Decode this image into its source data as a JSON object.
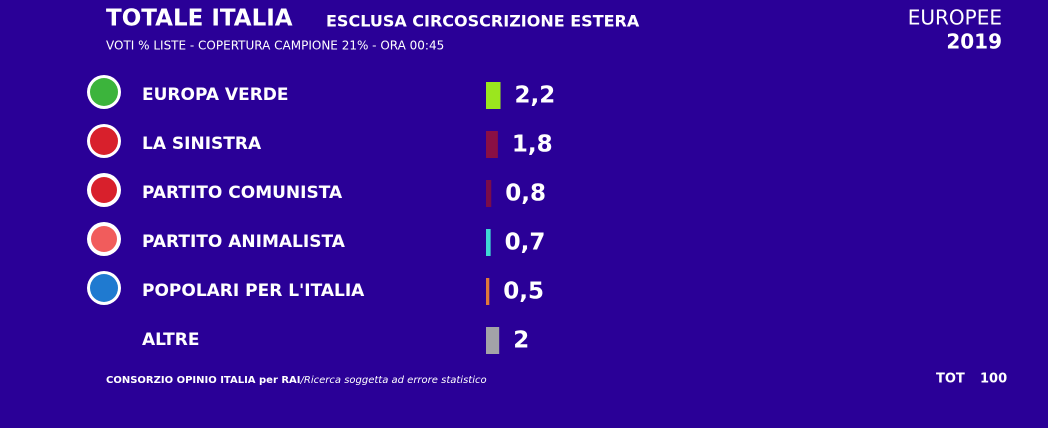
{
  "chart_data": {
    "type": "bar",
    "title": "TOTALE ITALIA",
    "subtitle": "ESCLUSA CIRCOSCRIZIONE ESTERA",
    "caption": "VOTI % LISTE - COPERTURA CAMPIONE 21% - ORA 00:45",
    "brand": "EUROPEE",
    "year": "2019",
    "source": "CONSORZIO OPINIO ITALIA per RAI",
    "note": "/Ricerca soggetta ad errore statistico",
    "total_label": "TOT",
    "total": 100,
    "categories": [
      "EUROPA VERDE",
      "LA SINISTRA",
      "PARTITO COMUNISTA",
      "PARTITO ANIMALISTA",
      "POPOLARI PER L'ITALIA",
      "ALTRE"
    ],
    "values": [
      2.2,
      1.8,
      0.8,
      0.7,
      0.5,
      2
    ],
    "value_labels": [
      "2,2",
      "1,8",
      "0,8",
      "0,7",
      "0,5",
      "2"
    ],
    "colors": [
      "#9be61e",
      "#8a0f45",
      "#7a0c4a",
      "#3fd8d4",
      "#e0783a",
      "#a3a3a8"
    ]
  }
}
